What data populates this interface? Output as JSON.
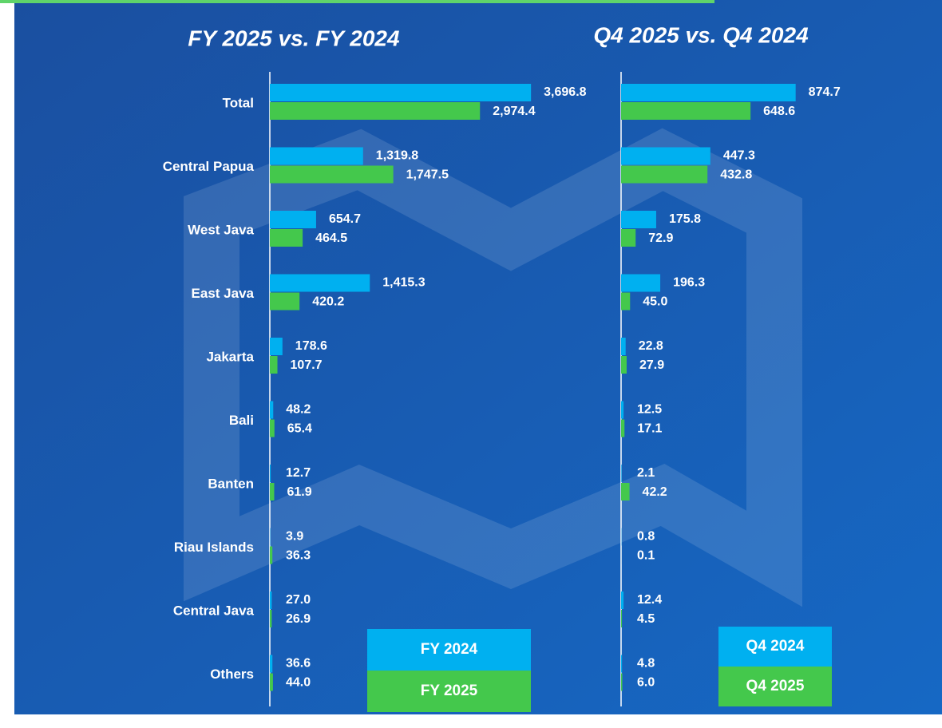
{
  "chart_data": [
    {
      "type": "bar",
      "orientation": "horizontal",
      "title": "FY 2025 vs. FY 2024",
      "categories": [
        "Total",
        "Central Papua",
        "West Java",
        "East Java",
        "Jakarta",
        "Bali",
        "Banten",
        "Riau Islands",
        "Central Java",
        "Others"
      ],
      "series": [
        {
          "name": "FY 2024",
          "color": "#00b0f0",
          "values": [
            3696.8,
            1319.8,
            654.7,
            1415.3,
            178.6,
            48.2,
            12.7,
            3.9,
            27.0,
            36.6
          ],
          "value_labels": [
            "3,696.8",
            "1,319.8",
            "654.7",
            "1,415.3",
            "178.6",
            "48.2",
            "12.7",
            "3.9",
            "27.0",
            "36.6"
          ]
        },
        {
          "name": "FY 2025",
          "color": "#44c84c",
          "values": [
            2974.4,
            1747.5,
            464.5,
            420.2,
            107.7,
            65.4,
            61.9,
            36.3,
            26.9,
            44.0
          ],
          "value_labels": [
            "2,974.4",
            "1,747.5",
            "464.5",
            "420.2",
            "107.7",
            "65.4",
            "61.9",
            "36.3",
            "26.9",
            "44.0"
          ]
        }
      ],
      "legend": "lower right"
    },
    {
      "type": "bar",
      "orientation": "horizontal",
      "title": "Q4 2025 vs. Q4 2024",
      "series": [
        {
          "name": "Q4 2024",
          "color": "#00b0f0",
          "values": [
            874.7,
            447.3,
            175.8,
            196.3,
            22.8,
            12.5,
            2.1,
            0.8,
            12.4,
            4.8
          ],
          "value_labels": [
            "874.7",
            "447.3",
            "175.8",
            "196.3",
            "22.8",
            "12.5",
            "2.1",
            "0.8",
            "12.4",
            "4.8"
          ]
        },
        {
          "name": "Q4 2025",
          "color": "#44c84c",
          "values": [
            648.6,
            432.8,
            72.9,
            45.0,
            27.9,
            17.1,
            42.2,
            0.1,
            4.5,
            6.0
          ],
          "value_labels": [
            "648.6",
            "432.8",
            "72.9",
            "45.0",
            "27.9",
            "17.1",
            "42.2",
            "0.1",
            "4.5",
            "6.0"
          ]
        }
      ],
      "legend": "lower right"
    }
  ]
}
